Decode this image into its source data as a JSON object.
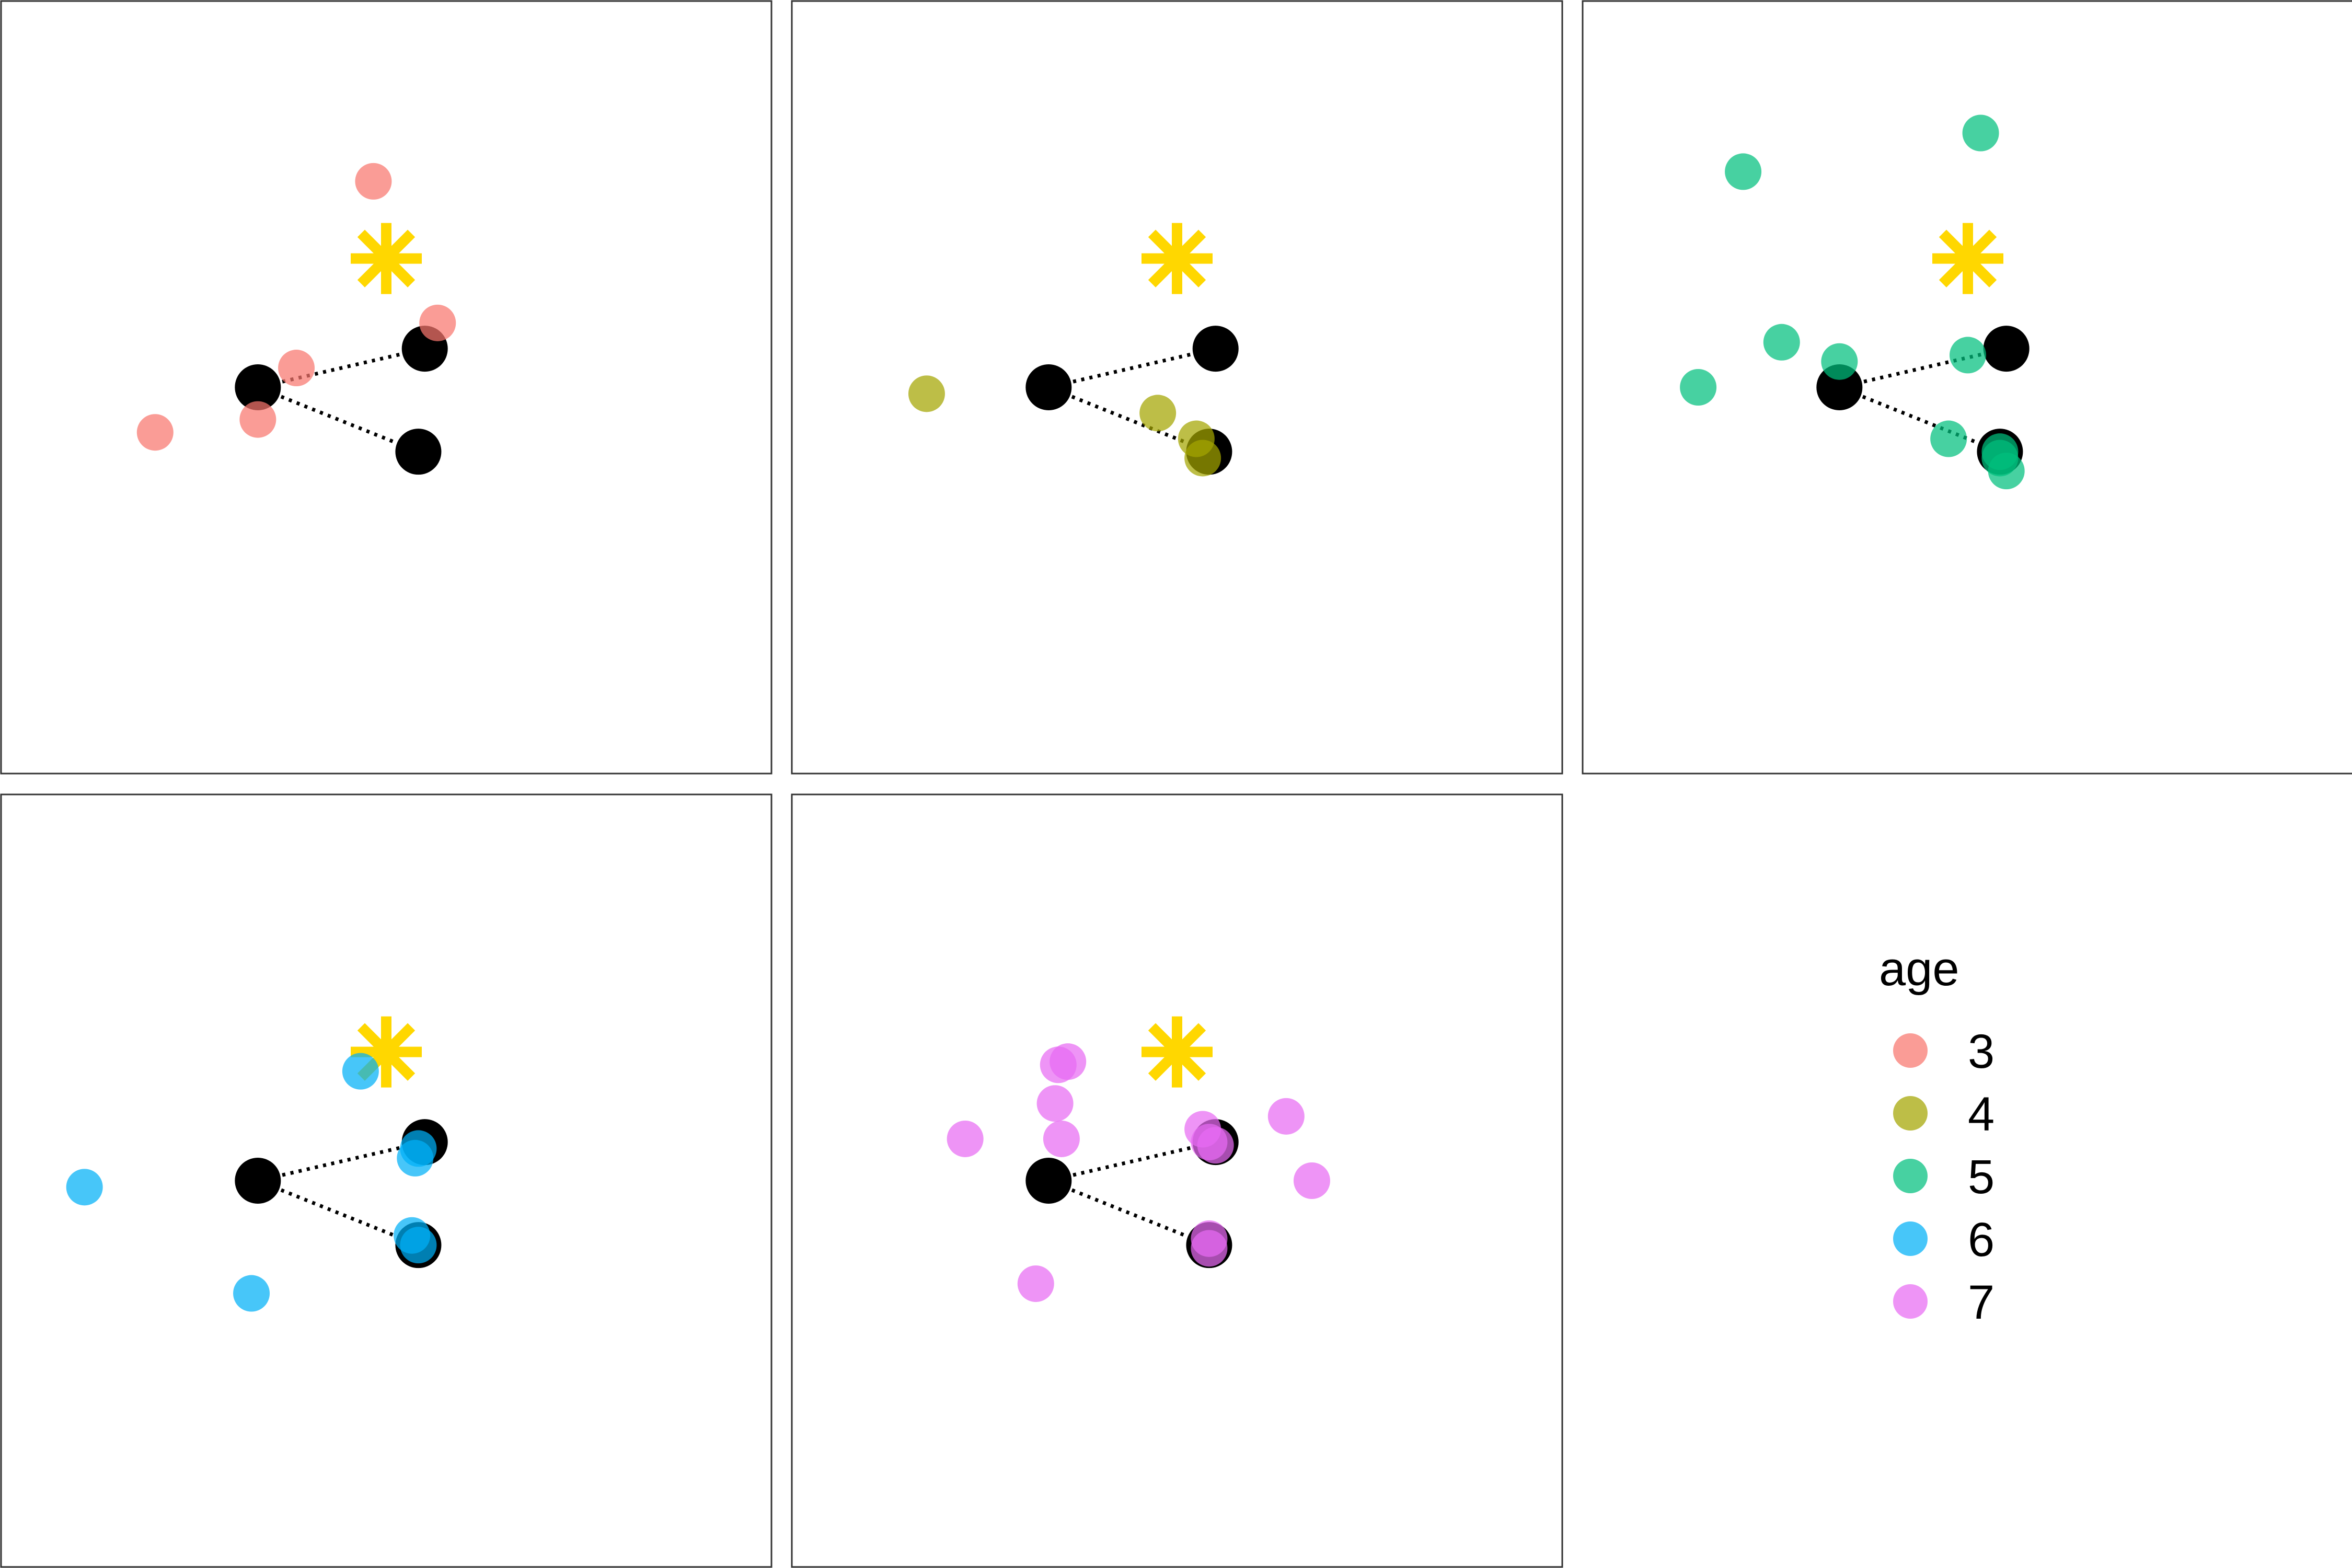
{
  "chart_data": {
    "type": "scatter",
    "facet_by": "age",
    "xlim": [
      -6,
      6
    ],
    "ylim": [
      -6,
      6
    ],
    "grid": false,
    "legend": {
      "title": "age",
      "position": "bottom-right",
      "entries": [
        {
          "label": "3",
          "color": "#F8766D"
        },
        {
          "label": "4",
          "color": "#A3A500"
        },
        {
          "label": "5",
          "color": "#00BF7D"
        },
        {
          "label": "6",
          "color": "#00B0F6"
        },
        {
          "label": "7",
          "color": "#E76BF3"
        }
      ]
    },
    "reference": {
      "star": {
        "x": 0,
        "y": 2
      },
      "points": [
        {
          "x": -2,
          "y": 0
        },
        {
          "x": 0.6,
          "y": 0.6
        },
        {
          "x": 0.5,
          "y": -1
        }
      ],
      "star_color": "#FFD700",
      "point_color": "#000000"
    },
    "series": [
      {
        "name": "3",
        "color": "#F8766D",
        "points": [
          {
            "x": -0.2,
            "y": 3.2
          },
          {
            "x": 0.8,
            "y": 1
          },
          {
            "x": -1.4,
            "y": 0.3
          },
          {
            "x": -2,
            "y": -0.5
          },
          {
            "x": -3.6,
            "y": -0.7
          }
        ]
      },
      {
        "name": "4",
        "color": "#A3A500",
        "points": [
          {
            "x": -3.9,
            "y": -0.1
          },
          {
            "x": -0.3,
            "y": -0.4
          },
          {
            "x": 0.3,
            "y": -0.8
          },
          {
            "x": 0.4,
            "y": -1.1
          }
        ]
      },
      {
        "name": "5",
        "color": "#00BF7D",
        "points": [
          {
            "x": 0.2,
            "y": 3.95
          },
          {
            "x": -3.5,
            "y": 3.35
          },
          {
            "x": -2.9,
            "y": 0.7
          },
          {
            "x": -4.2,
            "y": 0
          },
          {
            "x": -2,
            "y": 0.4
          },
          {
            "x": 0,
            "y": 0.5
          },
          {
            "x": -0.3,
            "y": -0.8
          },
          {
            "x": 0.5,
            "y": -1
          },
          {
            "x": 0.5,
            "y": -1.1
          },
          {
            "x": 0.6,
            "y": -1.3
          }
        ]
      },
      {
        "name": "6",
        "color": "#00B0F6",
        "points": [
          {
            "x": -0.4,
            "y": 1.7
          },
          {
            "x": 0.5,
            "y": 0.5
          },
          {
            "x": 0.45,
            "y": 0.35
          },
          {
            "x": 0.4,
            "y": -0.85
          },
          {
            "x": 0.5,
            "y": -1
          },
          {
            "x": -4.7,
            "y": -0.1
          },
          {
            "x": -2.1,
            "y": -1.75
          }
        ]
      },
      {
        "name": "7",
        "color": "#E76BF3",
        "points": [
          {
            "x": -1.7,
            "y": 1.85
          },
          {
            "x": -1.85,
            "y": 1.8
          },
          {
            "x": -1.9,
            "y": 1.2
          },
          {
            "x": -1.8,
            "y": 0.65
          },
          {
            "x": -3.3,
            "y": 0.65
          },
          {
            "x": 0.4,
            "y": 0.8
          },
          {
            "x": 0.6,
            "y": 0.55
          },
          {
            "x": 0.5,
            "y": 0.6
          },
          {
            "x": 1.7,
            "y": 1
          },
          {
            "x": 2.1,
            "y": 0
          },
          {
            "x": 0.5,
            "y": -0.9
          },
          {
            "x": 0.5,
            "y": -1.05
          },
          {
            "x": -2.2,
            "y": -1.6
          }
        ]
      }
    ]
  }
}
